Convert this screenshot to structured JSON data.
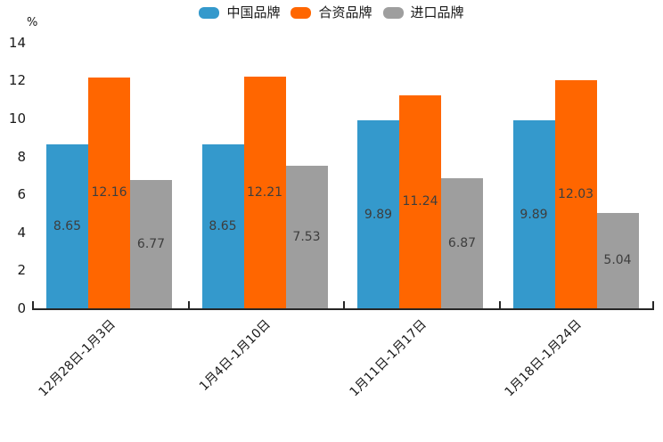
{
  "chart_data": {
    "type": "bar",
    "title": "",
    "unit_label": "%",
    "categories": [
      "12月28日-1月3日",
      "1月4日-1月10日",
      "1月11日-1月17日",
      "1月18日-1月24日"
    ],
    "series": [
      {
        "name": "中国品牌",
        "color": "#3499cc",
        "values": [
          8.65,
          8.65,
          9.89,
          9.89
        ]
      },
      {
        "name": "合资品牌",
        "color": "#ff6600",
        "values": [
          12.16,
          12.21,
          11.24,
          12.03
        ]
      },
      {
        "name": "进口品牌",
        "color": "#9e9e9e",
        "values": [
          6.77,
          7.53,
          6.87,
          5.04
        ]
      }
    ],
    "ylim": [
      0,
      14
    ],
    "yticks": [
      0,
      2,
      4,
      6,
      8,
      10,
      12,
      14
    ],
    "legend_position": "top-center",
    "grid": false,
    "value_labels": true,
    "value_label_color": "#3d3d3d",
    "axis_color": "#262626",
    "tick_text_color": "#1a1a1a"
  }
}
